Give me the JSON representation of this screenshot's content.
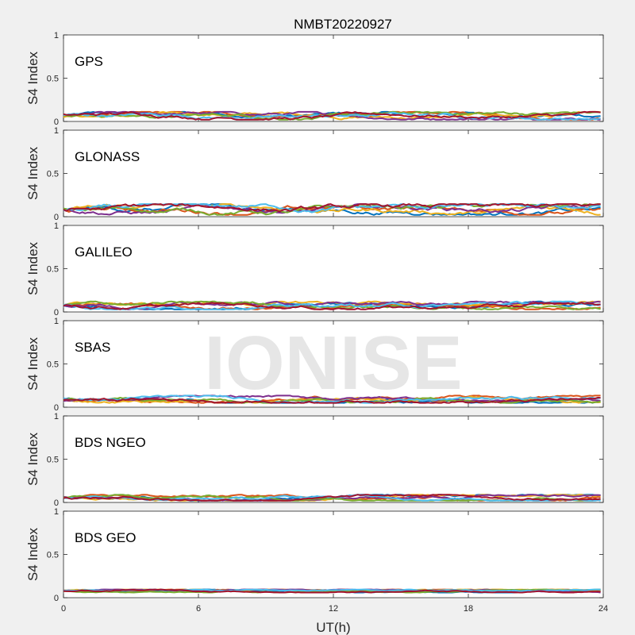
{
  "figure": {
    "title": "NMBT20220927",
    "ylabel": "S4 Index",
    "xlabel": "UT(h)",
    "watermark": "IONISE"
  },
  "chart_data": [
    {
      "type": "line",
      "panel": "GPS",
      "title": "GPS",
      "xlabel": "",
      "ylabel": "S4 Index",
      "xlim": [
        0,
        24
      ],
      "ylim": [
        0,
        1
      ],
      "yticks": [
        "0",
        "0.5",
        "1"
      ],
      "xticks": [],
      "y_range_note": [
        0.02,
        0.15
      ]
    },
    {
      "type": "line",
      "panel": "GLONASS",
      "title": "GLONASS",
      "xlabel": "",
      "ylabel": "S4 Index",
      "xlim": [
        0,
        24
      ],
      "ylim": [
        0,
        1
      ],
      "yticks": [
        "0",
        "0.5",
        "1"
      ],
      "xticks": [],
      "y_range_note": [
        0.02,
        0.2
      ]
    },
    {
      "type": "line",
      "panel": "GALILEO",
      "title": "GALILEO",
      "xlabel": "",
      "ylabel": "S4 Index",
      "xlim": [
        0,
        24
      ],
      "ylim": [
        0,
        1
      ],
      "yticks": [
        "0",
        "0.5",
        "1"
      ],
      "xticks": [],
      "y_range_note": [
        0.03,
        0.16
      ]
    },
    {
      "type": "line",
      "panel": "SBAS",
      "title": "SBAS",
      "xlabel": "",
      "ylabel": "S4 Index",
      "xlim": [
        0,
        24
      ],
      "ylim": [
        0,
        1
      ],
      "yticks": [
        "0",
        "0.5",
        "1"
      ],
      "xticks": [],
      "y_range_note": [
        0.05,
        0.17
      ]
    },
    {
      "type": "line",
      "panel": "BDS NGEO",
      "title": "BDS NGEO",
      "xlabel": "",
      "ylabel": "S4 Index",
      "xlim": [
        0,
        24
      ],
      "ylim": [
        0,
        1
      ],
      "yticks": [
        "0",
        "0.5",
        "1"
      ],
      "xticks": [],
      "y_range_note": [
        0.02,
        0.12
      ]
    },
    {
      "type": "line",
      "panel": "BDS GEO",
      "title": "BDS GEO",
      "xlabel": "UT(h)",
      "ylabel": "S4 Index",
      "xlim": [
        0,
        24
      ],
      "ylim": [
        0,
        1
      ],
      "yticks": [
        "0",
        "0.5",
        "1"
      ],
      "xticks": [
        "0",
        "6",
        "12",
        "18",
        "24"
      ],
      "y_range_note": [
        0.06,
        0.11
      ]
    }
  ],
  "series_colors": [
    "#0072bd",
    "#d95319",
    "#edb120",
    "#7e2f8e",
    "#77ac30",
    "#4dbeee",
    "#a2142f"
  ]
}
